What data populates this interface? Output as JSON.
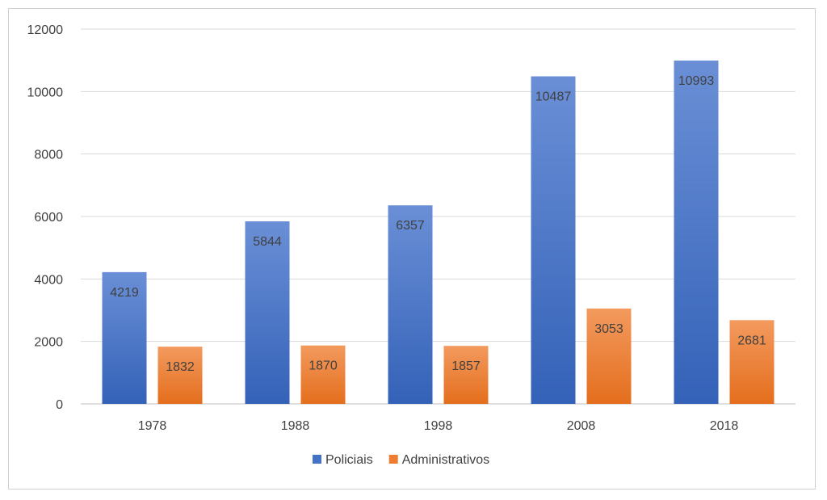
{
  "chart_data": {
    "type": "bar",
    "title": "",
    "xlabel": "",
    "ylabel": "",
    "categories": [
      "1978",
      "1988",
      "1998",
      "2008",
      "2018"
    ],
    "series": [
      {
        "name": "Policiais",
        "values": [
          4219,
          5844,
          6357,
          10487,
          10993
        ],
        "color": "#4472C4"
      },
      {
        "name": "Administrativos",
        "values": [
          1832,
          1870,
          1857,
          3053,
          2681
        ],
        "color": "#ED7D31"
      }
    ],
    "ylim": [
      0,
      12000
    ],
    "yticks": [
      0,
      2000,
      4000,
      6000,
      8000,
      10000,
      12000
    ],
    "grid": true,
    "legend_position": "bottom"
  }
}
